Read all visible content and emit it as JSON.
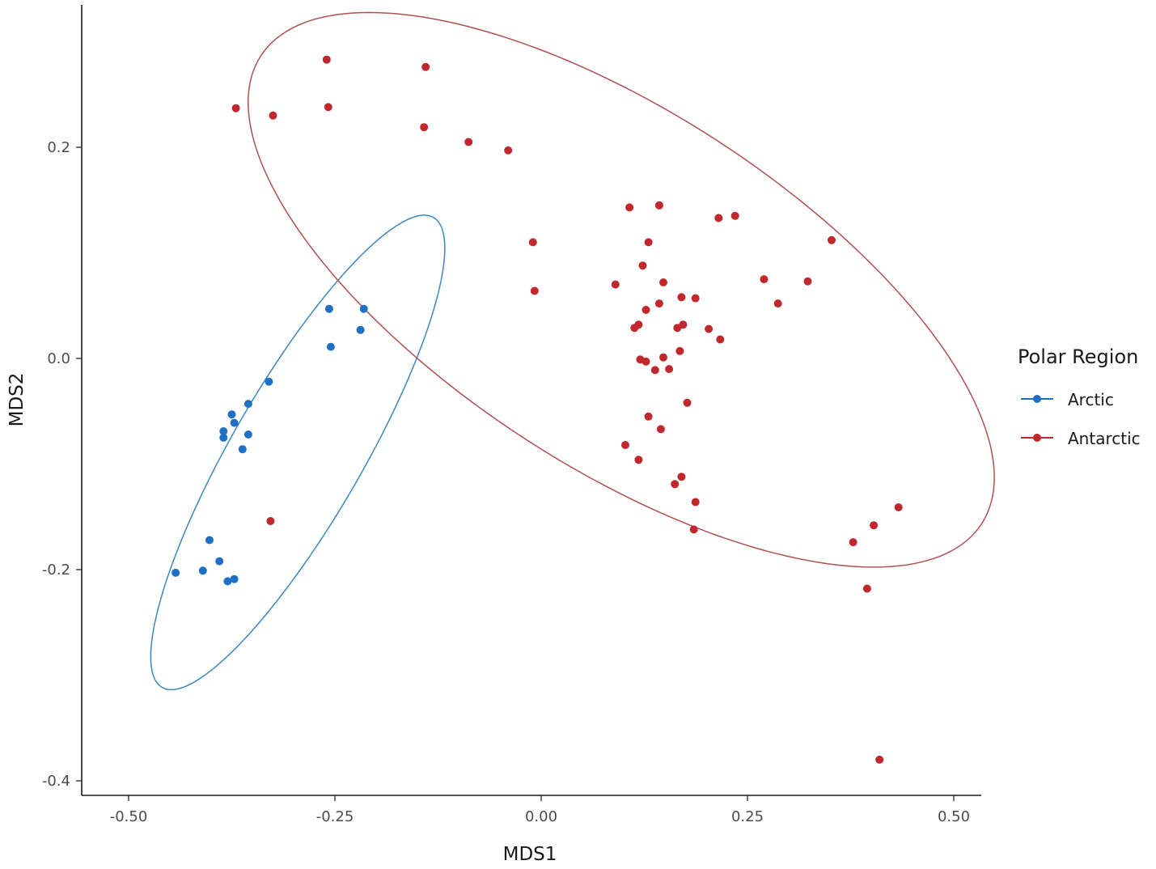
{
  "chart_data": {
    "type": "scatter",
    "title": "",
    "xlabel": "MDS1",
    "ylabel": "MDS2",
    "xlim": [
      -0.55,
      0.53
    ],
    "ylim": [
      -0.415,
      0.335
    ],
    "x_ticks": [
      -0.5,
      -0.25,
      0.0,
      0.25,
      0.5
    ],
    "x_tick_labels": [
      "-0.50",
      "-0.25",
      "0.00",
      "0.25",
      "0.50"
    ],
    "y_ticks": [
      -0.4,
      -0.2,
      0.0,
      0.2
    ],
    "y_tick_labels": [
      "-0.4",
      "-0.2",
      "0.0",
      "0.2"
    ],
    "grid": false,
    "legend": {
      "title": "Polar Region",
      "placement": "right",
      "entries": [
        "Arctic",
        "Antarctic"
      ]
    },
    "series": [
      {
        "name": "Arctic",
        "color": "#1f6fc5",
        "ellipse_color": "#3d87be",
        "points": [
          [
            -0.257,
            0.047
          ],
          [
            -0.215,
            0.047
          ],
          [
            -0.219,
            0.027
          ],
          [
            -0.255,
            0.011
          ],
          [
            -0.33,
            -0.022
          ],
          [
            -0.355,
            -0.043
          ],
          [
            -0.375,
            -0.053
          ],
          [
            -0.372,
            -0.061
          ],
          [
            -0.385,
            -0.069
          ],
          [
            -0.385,
            -0.075
          ],
          [
            -0.355,
            -0.072
          ],
          [
            -0.362,
            -0.086
          ],
          [
            -0.402,
            -0.172
          ],
          [
            -0.39,
            -0.192
          ],
          [
            -0.41,
            -0.201
          ],
          [
            -0.443,
            -0.203
          ],
          [
            -0.38,
            -0.211
          ],
          [
            -0.372,
            -0.209
          ]
        ],
        "ellipse": {
          "center": [
            -0.295,
            -0.089
          ],
          "semi_major": 0.257,
          "semi_minor": 0.062,
          "angle_deg": 60
        }
      },
      {
        "name": "Antarctic",
        "color": "#c0282d",
        "ellipse_color": "#b05050",
        "points": [
          [
            -0.26,
            0.283
          ],
          [
            -0.37,
            0.237
          ],
          [
            -0.258,
            0.238
          ],
          [
            -0.325,
            0.23
          ],
          [
            -0.14,
            0.276
          ],
          [
            -0.142,
            0.219
          ],
          [
            -0.088,
            0.205
          ],
          [
            -0.04,
            0.197
          ],
          [
            -0.01,
            0.11
          ],
          [
            -0.008,
            0.064
          ],
          [
            0.107,
            0.143
          ],
          [
            0.143,
            0.145
          ],
          [
            0.13,
            0.11
          ],
          [
            0.215,
            0.133
          ],
          [
            0.235,
            0.135
          ],
          [
            0.352,
            0.112
          ],
          [
            0.123,
            0.088
          ],
          [
            0.09,
            0.07
          ],
          [
            0.148,
            0.072
          ],
          [
            0.27,
            0.075
          ],
          [
            0.323,
            0.073
          ],
          [
            0.17,
            0.058
          ],
          [
            0.187,
            0.057
          ],
          [
            0.143,
            0.052
          ],
          [
            0.287,
            0.052
          ],
          [
            0.127,
            0.046
          ],
          [
            0.118,
            0.032
          ],
          [
            0.113,
            0.029
          ],
          [
            0.172,
            0.032
          ],
          [
            0.165,
            0.029
          ],
          [
            0.203,
            0.028
          ],
          [
            0.217,
            0.018
          ],
          [
            0.12,
            -0.001
          ],
          [
            0.127,
            -0.003
          ],
          [
            0.148,
            0.001
          ],
          [
            0.168,
            0.007
          ],
          [
            0.138,
            -0.011
          ],
          [
            0.155,
            -0.01
          ],
          [
            0.177,
            -0.042
          ],
          [
            0.13,
            -0.055
          ],
          [
            0.145,
            -0.067
          ],
          [
            0.102,
            -0.082
          ],
          [
            0.118,
            -0.096
          ],
          [
            0.17,
            -0.112
          ],
          [
            0.162,
            -0.119
          ],
          [
            0.187,
            -0.136
          ],
          [
            0.185,
            -0.162
          ],
          [
            0.433,
            -0.141
          ],
          [
            0.403,
            -0.158
          ],
          [
            0.378,
            -0.174
          ],
          [
            0.395,
            -0.218
          ],
          [
            0.41,
            -0.38
          ],
          [
            -0.328,
            -0.154
          ]
        ],
        "ellipse": {
          "center": [
            0.097,
            0.065
          ],
          "semi_major": 0.407,
          "semi_minor": 0.168,
          "angle_deg": -33
        }
      }
    ]
  }
}
